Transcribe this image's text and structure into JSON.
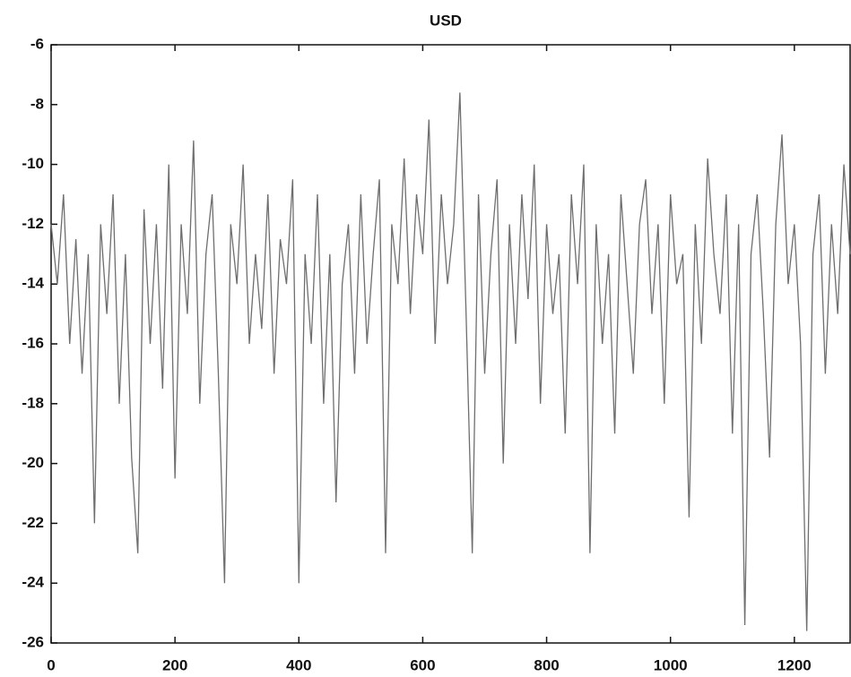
{
  "chart_data": {
    "type": "line",
    "title": "USD",
    "x": [
      0,
      10,
      20,
      30,
      40,
      50,
      60,
      70,
      80,
      90,
      100,
      110,
      120,
      130,
      140,
      150,
      160,
      170,
      180,
      190,
      200,
      210,
      220,
      230,
      240,
      250,
      260,
      270,
      280,
      290,
      300,
      310,
      320,
      330,
      340,
      350,
      360,
      370,
      380,
      390,
      400,
      410,
      420,
      430,
      440,
      450,
      460,
      470,
      480,
      490,
      500,
      510,
      520,
      530,
      540,
      550,
      560,
      570,
      580,
      590,
      600,
      610,
      620,
      630,
      640,
      650,
      660,
      670,
      680,
      690,
      700,
      710,
      720,
      730,
      740,
      750,
      760,
      770,
      780,
      790,
      800,
      810,
      820,
      830,
      840,
      850,
      860,
      870,
      880,
      890,
      900,
      910,
      920,
      930,
      940,
      950,
      960,
      970,
      980,
      990,
      1000,
      1010,
      1020,
      1030,
      1040,
      1050,
      1060,
      1070,
      1080,
      1090,
      1100,
      1110,
      1120,
      1130,
      1140,
      1150,
      1160,
      1170,
      1180,
      1190,
      1200,
      1210,
      1220,
      1230,
      1240,
      1250,
      1260,
      1270,
      1280,
      1290
    ],
    "series": [
      {
        "color": "#6e6e6e",
        "values": [
          -12,
          -14,
          -11,
          -16,
          -12.5,
          -17,
          -13,
          -22,
          -12,
          -15,
          -11,
          -18,
          -13,
          -19.8,
          -23,
          -11.5,
          -16,
          -12,
          -17.5,
          -10,
          -20.5,
          -12,
          -15,
          -9.2,
          -18,
          -13,
          -11,
          -17,
          -24,
          -12,
          -14,
          -10,
          -16,
          -13,
          -15.5,
          -11,
          -17,
          -12.5,
          -14,
          -10.5,
          -24,
          -13,
          -16,
          -11,
          -18,
          -13,
          -21.3,
          -14,
          -12,
          -17,
          -11,
          -16,
          -13,
          -10.5,
          -23,
          -12,
          -14,
          -9.8,
          -15,
          -11,
          -13,
          -8.5,
          -16,
          -11,
          -14,
          -12,
          -7.6,
          -15,
          -23,
          -11,
          -17,
          -13,
          -10.5,
          -20,
          -12,
          -16,
          -11,
          -14.5,
          -10,
          -18,
          -12,
          -15,
          -13,
          -19,
          -11,
          -14,
          -10,
          -23,
          -12,
          -16,
          -13,
          -19,
          -11,
          -14,
          -17,
          -12,
          -10.5,
          -15,
          -12,
          -18,
          -11,
          -14,
          -13,
          -21.8,
          -12,
          -16,
          -9.8,
          -13,
          -15,
          -11,
          -19,
          -12,
          -25.4,
          -13,
          -11,
          -15,
          -19.8,
          -12,
          -9,
          -14,
          -12,
          -16,
          -25.6,
          -13,
          -11,
          -17,
          -12,
          -15,
          -10,
          -13
        ]
      }
    ],
    "xlim": [
      0,
      1290
    ],
    "xticks": [
      0,
      200,
      400,
      600,
      800,
      1000,
      1200
    ],
    "ylim": [
      -26,
      -6
    ],
    "yticks": [
      -26,
      -24,
      -22,
      -20,
      -18,
      -16,
      -14,
      -12,
      -10,
      -8,
      -6
    ]
  }
}
